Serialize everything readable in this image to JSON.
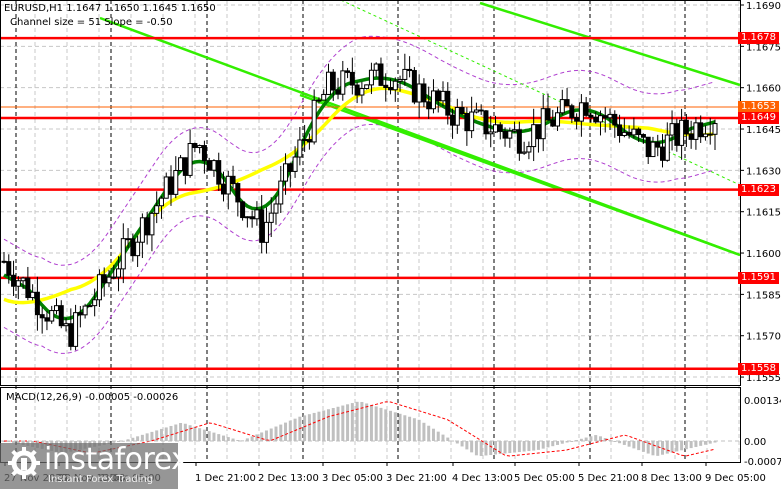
{
  "header": {
    "symbol_line": "EURUSD,H1  1.1647 1.1650 1.1645 1.1650",
    "symbol": "EURUSD,H1",
    "ohlc": {
      "open": "1.1647",
      "high": "1.1650",
      "low": "1.1645",
      "close": "1.1650"
    },
    "channel_line": "Channel size = 51 Slope = -0.50"
  },
  "macd": {
    "title": "MACD(12,26,9) -0.00005 -0.00026",
    "axis_labels": [
      "0.00134",
      "0.00",
      "-0.00073"
    ]
  },
  "price_axis": {
    "ticks": [
      "1.1690",
      "1.1675",
      "1.1660",
      "1.1645",
      "1.1630",
      "1.1615",
      "1.1600",
      "1.1585",
      "1.1570",
      "1.1555"
    ],
    "level_labels": [
      {
        "value": "1.1678",
        "color": "#ff0000"
      },
      {
        "value": "1.1653",
        "color": "#ff6000"
      },
      {
        "value": "1.1649",
        "color": "#ff0000"
      },
      {
        "value": "1.1623",
        "color": "#ff0000"
      },
      {
        "value": "1.1591",
        "color": "#ff0000"
      },
      {
        "value": "1.1558",
        "color": "#ff0000"
      }
    ]
  },
  "time_axis": {
    "labels": [
      "27 Nov 2025",
      "28 Nov 13:00",
      "1 Dec 05:00",
      "1 Dec 21:00",
      "2 Dec 13:00",
      "3 Dec 05:00",
      "3 Dec 21:00",
      "4 Dec 13:00",
      "5 Dec 05:00",
      "5 Dec 21:00",
      "8 Dec 13:00",
      "9 Dec 05:00"
    ]
  },
  "watermark": {
    "brand": "instaforex",
    "tagline": "Instant Forex Trading"
  },
  "colors": {
    "support_resistance": "#ff0000",
    "current_level": "#ff6000",
    "channel": "#33ee00",
    "ma_fast": "#008000",
    "ma_slow": "#ffff00",
    "envelope": "#b040d0",
    "macd_hist": "#c0c0c0",
    "macd_signal": "#ff0000"
  },
  "chart_data": [
    {
      "type": "candlestick",
      "title": "EURUSD,H1",
      "subtitle": "Channel size = 51 Slope = -0.50",
      "ylim": [
        1.1555,
        1.169
      ],
      "y_ticks": [
        1.169,
        1.1675,
        1.166,
        1.1645,
        1.163,
        1.1615,
        1.16,
        1.1585,
        1.157,
        1.1555
      ],
      "x_ticks": [
        "27 Nov 2025",
        "28 Nov 13:00",
        "1 Dec 05:00",
        "1 Dec 21:00",
        "2 Dec 13:00",
        "3 Dec 05:00",
        "3 Dec 21:00",
        "4 Dec 13:00",
        "5 Dec 05:00",
        "5 Dec 21:00",
        "8 Dec 13:00",
        "9 Dec 05:00"
      ],
      "last_ohlc": {
        "open": 1.1647,
        "high": 1.165,
        "low": 1.1645,
        "close": 1.165
      },
      "horizontal_levels": [
        1.1678,
        1.1653,
        1.1649,
        1.1623,
        1.1591,
        1.1558
      ],
      "approx_close_path": [
        {
          "t": "27 Nov 2025",
          "close": 1.1597
        },
        {
          "t": "28 Nov 13:00",
          "close": 1.157
        },
        {
          "t": "1 Dec 05:00",
          "close": 1.1605
        },
        {
          "t": "1 Dec 21:00",
          "close": 1.164
        },
        {
          "t": "2 Dec 13:00",
          "close": 1.1608
        },
        {
          "t": "3 Dec 05:00",
          "close": 1.166
        },
        {
          "t": "3 Dec 21:00",
          "close": 1.1665
        },
        {
          "t": "4 Dec 13:00",
          "close": 1.165
        },
        {
          "t": "5 Dec 05:00",
          "close": 1.1642
        },
        {
          "t": "5 Dec 21:00",
          "close": 1.1655
        },
        {
          "t": "8 Dec 13:00",
          "close": 1.1637
        },
        {
          "t": "9 Dec 05:00",
          "close": 1.165
        }
      ],
      "price_range": {
        "high": 1.1684,
        "low": 1.1556
      },
      "indicators": [
        "Moving average fast (dark green)",
        "Moving average slow (yellow)",
        "Envelopes (purple dashed)",
        "Descending linear regression channel (green)"
      ]
    },
    {
      "type": "bar",
      "title": "MACD(12,26,9) -0.00005 -0.00026",
      "series": [
        {
          "name": "MACD histogram",
          "last": -5e-05
        },
        {
          "name": "Signal",
          "last": -0.00026
        }
      ],
      "ylim": [
        -0.00073,
        0.00134
      ],
      "y_ticks": [
        0.00134,
        0.0,
        -0.00073
      ],
      "approx_macd_path": [
        0.0,
        -0.0004,
        0.0,
        0.0006,
        0.0,
        0.0008,
        0.0013,
        0.0007,
        -0.0005,
        -0.0003,
        0.0002,
        -0.0005,
        -5e-05
      ]
    }
  ]
}
